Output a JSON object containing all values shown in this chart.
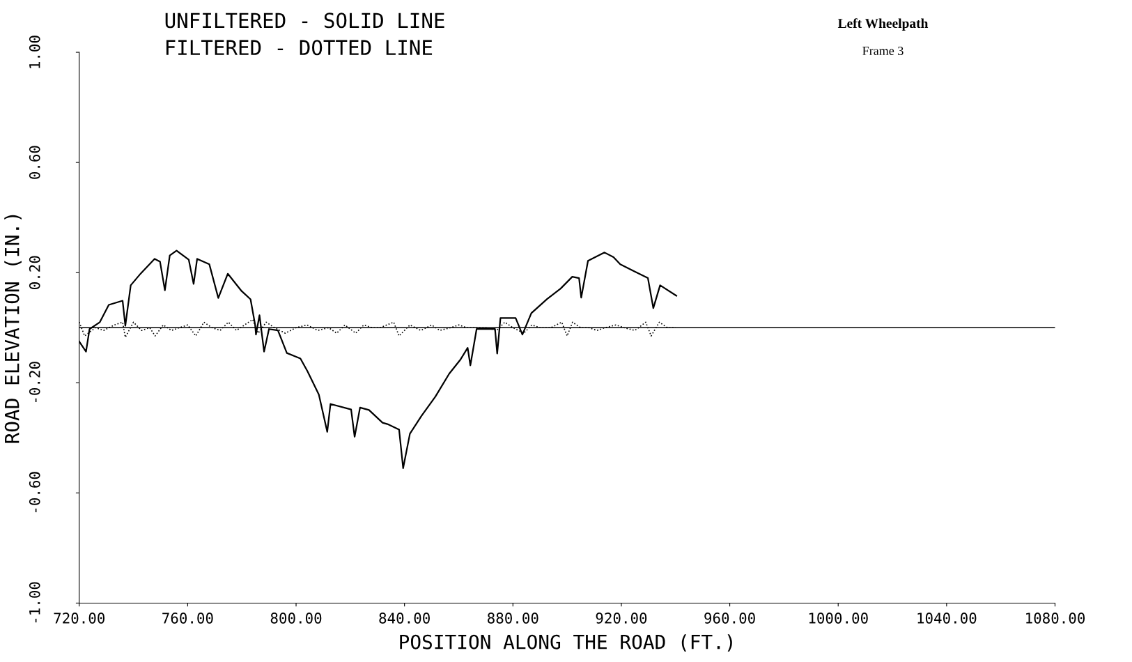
{
  "chart_data": {
    "type": "line",
    "title": "Left Wheelpath",
    "subtitle": "Frame 3",
    "annotations": [
      "UNFILTERED - SOLID LINE",
      "FILTERED - DOTTED LINE"
    ],
    "xlabel": "POSITION ALONG THE ROAD (FT.)",
    "ylabel": "ROAD ELEVATION (IN.)",
    "xlim": [
      720,
      1080
    ],
    "xticks": [
      {
        "value": 720,
        "label": "720.00"
      },
      {
        "value": 760,
        "label": "760.00"
      },
      {
        "value": 800,
        "label": "800.00"
      },
      {
        "value": 840,
        "label": "840.00"
      },
      {
        "value": 880,
        "label": "880.00"
      },
      {
        "value": 920,
        "label": "920.00"
      },
      {
        "value": 960,
        "label": "960.00"
      },
      {
        "value": 1000,
        "label": "1000.00"
      },
      {
        "value": 1040,
        "label": "1040.00"
      },
      {
        "value": 1080,
        "label": "1080.00"
      }
    ],
    "ylim": [
      -1.0,
      1.0
    ],
    "yticks": [
      {
        "value": -1.0,
        "label": "-1.00"
      },
      {
        "value": -0.6,
        "label": "-0.60"
      },
      {
        "value": -0.2,
        "label": "-0.20"
      },
      {
        "value": 0.2,
        "label": "0.20"
      },
      {
        "value": 0.6,
        "label": "0.60"
      },
      {
        "value": 1.0,
        "label": "1.00"
      }
    ],
    "grid": false,
    "legend": false,
    "ref_lines": [
      {
        "axis": "y",
        "value": 0,
        "color": "#000000",
        "line_style": "solid"
      }
    ],
    "series": [
      {
        "color": "#000000",
        "line_style": "solid",
        "x": [
          720,
          722.5,
          723.8,
          727.6,
          730.9,
          736,
          737,
          739,
          742.7,
          747.8,
          749.8,
          751.6,
          753.4,
          755.9,
          760.4,
          762.2,
          763.5,
          768,
          771.3,
          774.8,
          779.9,
          783.2,
          784.9,
          785.2,
          786.5,
          788.2,
          790,
          793.3,
          796.6,
          801.6,
          804.2,
          808.4,
          811.5,
          812.7,
          820.3,
          821.6,
          823.6,
          826.9,
          831.9,
          833.7,
          838,
          839.5,
          842,
          846.3,
          851.4,
          856.5,
          860.7,
          863.3,
          864.3,
          866.6,
          873.4,
          874.2,
          875.4,
          881,
          883.5,
          886.8,
          892.6,
          897.6,
          901.9,
          904.4,
          905.2,
          907.7,
          913.8,
          917.1,
          919.6,
          924.7,
          929.8,
          931.8,
          934.3,
          940.3
        ],
        "values": [
          -0.05,
          -0.087,
          -0.005,
          0.02,
          0.083,
          0.098,
          0.007,
          0.154,
          0.197,
          0.25,
          0.24,
          0.136,
          0.262,
          0.28,
          0.247,
          0.159,
          0.25,
          0.23,
          0.108,
          0.196,
          0.133,
          0.103,
          0.01,
          -0.025,
          0.045,
          -0.087,
          -0.005,
          -0.01,
          -0.092,
          -0.112,
          -0.158,
          -0.243,
          -0.378,
          -0.277,
          -0.297,
          -0.396,
          -0.29,
          -0.299,
          -0.345,
          -0.35,
          -0.37,
          -0.51,
          -0.385,
          -0.32,
          -0.25,
          -0.167,
          -0.115,
          -0.073,
          -0.137,
          -0.005,
          -0.005,
          -0.094,
          0.035,
          0.035,
          -0.025,
          0.053,
          0.104,
          0.142,
          0.185,
          0.18,
          0.109,
          0.243,
          0.273,
          0.256,
          0.23,
          0.205,
          0.18,
          0.071,
          0.154,
          0.116
        ]
      },
      {
        "color": "#000000",
        "line_style": "dotted",
        "x": [
          720,
          722,
          726,
          729,
          733,
          736,
          737,
          740,
          743,
          746,
          748,
          751,
          754,
          757,
          760,
          763,
          766,
          769,
          772,
          775,
          778,
          781,
          784,
          786,
          789,
          792,
          796,
          800,
          804,
          808,
          812,
          815,
          818,
          822,
          825,
          828,
          831,
          836,
          838,
          842,
          846,
          850,
          853,
          857,
          860,
          863,
          866,
          870,
          874,
          877,
          880,
          884,
          887,
          890,
          894,
          898,
          900,
          902,
          905,
          908,
          911,
          914,
          918,
          921,
          925,
          929,
          931,
          934,
          937,
          940
        ],
        "values": [
          0.02,
          -0.03,
          0.0,
          -0.01,
          0.01,
          0.02,
          -0.035,
          0.02,
          -0.01,
          0.0,
          -0.03,
          0.01,
          -0.01,
          0.0,
          0.01,
          -0.03,
          0.02,
          0.0,
          -0.01,
          0.02,
          -0.01,
          0.01,
          0.03,
          -0.02,
          0.02,
          0.0,
          -0.02,
          0.0,
          0.01,
          -0.01,
          0.0,
          -0.02,
          0.01,
          -0.02,
          0.01,
          0.0,
          0.0,
          0.02,
          -0.03,
          0.01,
          -0.01,
          0.01,
          -0.01,
          0.0,
          0.01,
          0.0,
          0.0,
          0.0,
          -0.01,
          0.02,
          0.0,
          -0.02,
          0.01,
          0.0,
          0.0,
          0.02,
          -0.03,
          0.02,
          0.0,
          0.0,
          -0.01,
          0.0,
          0.01,
          0.0,
          -0.01,
          0.02,
          -0.03,
          0.02,
          0.0,
          0.0
        ]
      }
    ]
  }
}
